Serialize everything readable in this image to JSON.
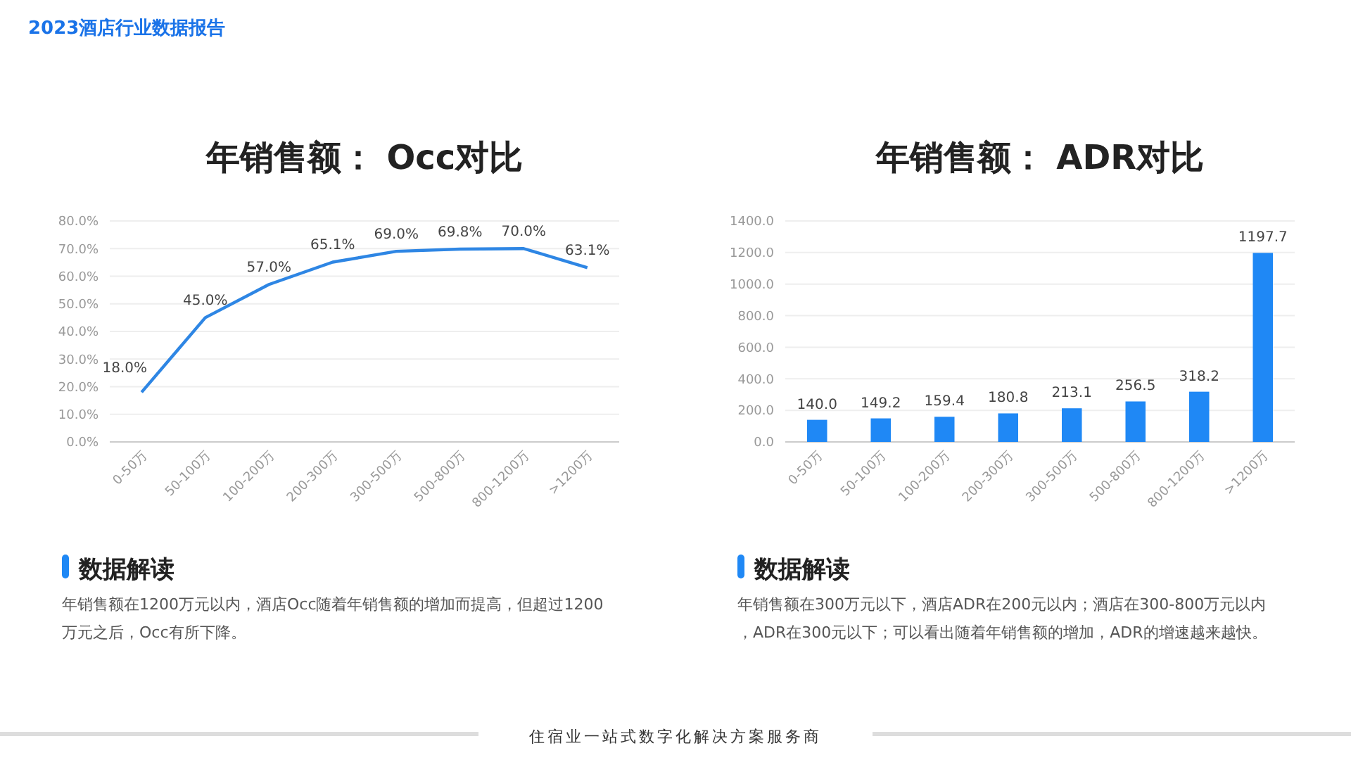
{
  "chart_data": [
    {
      "type": "line",
      "title": "年销售额： Occ对比",
      "categories": [
        "0-50万",
        "50-100万",
        "100-200万",
        "200-300万",
        "300-500万",
        "500-800万",
        "800-1200万",
        ">1200万"
      ],
      "series": [
        {
          "color": "#2e86e4",
          "values": [
            18.0,
            45.0,
            57.0,
            65.1,
            69.0,
            69.8,
            70.0,
            63.1
          ],
          "value_labels": [
            "18.0%",
            "45.0%",
            "57.0%",
            "65.1%",
            "69.0%",
            "69.8%",
            "70.0%",
            "63.1%"
          ]
        }
      ],
      "ylim": [
        0,
        80
      ],
      "yticks": [
        {
          "value": 0,
          "label": "0.0%"
        },
        {
          "value": 10,
          "label": "10.0%"
        },
        {
          "value": 20,
          "label": "20.0%"
        },
        {
          "value": 30,
          "label": "30.0%"
        },
        {
          "value": 40,
          "label": "40.0%"
        },
        {
          "value": 50,
          "label": "50.0%"
        },
        {
          "value": 60,
          "label": "60.0%"
        },
        {
          "value": 70,
          "label": "70.0%"
        },
        {
          "value": 80,
          "label": "80.0%"
        }
      ],
      "grid": "y",
      "annotations": [
        "2023酒店行业数据报告",
        "数据解读",
        "年销售额在1200万元以内，酒店Occ随着年销售额的增加而提高，但超过1200万元之后，Occ有所下降。"
      ]
    },
    {
      "type": "bar",
      "title": "年销售额： ADR对比",
      "categories": [
        "0-50万",
        "50-100万",
        "100-200万",
        "200-300万",
        "300-500万",
        "500-800万",
        "800-1200万",
        ">1200万"
      ],
      "series": [
        {
          "color": "#1f88f5",
          "values": [
            140.0,
            149.2,
            159.4,
            180.8,
            213.1,
            256.5,
            318.2,
            1197.7
          ],
          "value_labels": [
            "140.0",
            "149.2",
            "159.4",
            "180.8",
            "213.1",
            "256.5",
            "318.2",
            "1197.7"
          ]
        }
      ],
      "ylim": [
        0,
        1400
      ],
      "yticks": [
        {
          "value": 0,
          "label": "0.0"
        },
        {
          "value": 200,
          "label": "200.0"
        },
        {
          "value": 400,
          "label": "400.0"
        },
        {
          "value": 600,
          "label": "600.0"
        },
        {
          "value": 800,
          "label": "800.0"
        },
        {
          "value": 1000,
          "label": "1000.0"
        },
        {
          "value": 1200,
          "label": "1200.0"
        },
        {
          "value": 1400,
          "label": "1400.0"
        }
      ],
      "grid": "y",
      "annotations": [
        "数据解读",
        "年销售额在300万元以下，酒店ADR在200元以内；酒店在300-800万元以内，ADR在300元以下；可以看出随着年销售额的增加，ADR的增速越来越快。",
        "住宿业一站式数字化解决方案服务商"
      ]
    }
  ]
}
